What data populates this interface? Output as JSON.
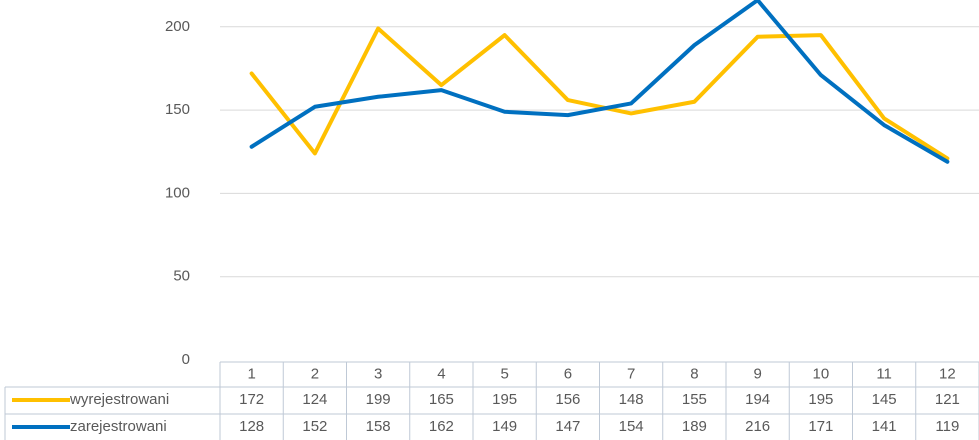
{
  "chart_data": {
    "type": "line",
    "categories": [
      "1",
      "2",
      "3",
      "4",
      "5",
      "6",
      "7",
      "8",
      "9",
      "10",
      "11",
      "12"
    ],
    "series": [
      {
        "name": "wyrejestrowani",
        "color": "#ffc000",
        "values": [
          172,
          124,
          199,
          165,
          195,
          156,
          148,
          155,
          194,
          195,
          145,
          121
        ]
      },
      {
        "name": "zarejestrowani",
        "color": "#0070c0",
        "values": [
          128,
          152,
          158,
          162,
          149,
          147,
          154,
          189,
          216,
          171,
          141,
          119
        ]
      }
    ],
    "ylim": [
      0,
      250
    ],
    "yticks": [
      0,
      50,
      100,
      150,
      200
    ],
    "grid": true
  }
}
